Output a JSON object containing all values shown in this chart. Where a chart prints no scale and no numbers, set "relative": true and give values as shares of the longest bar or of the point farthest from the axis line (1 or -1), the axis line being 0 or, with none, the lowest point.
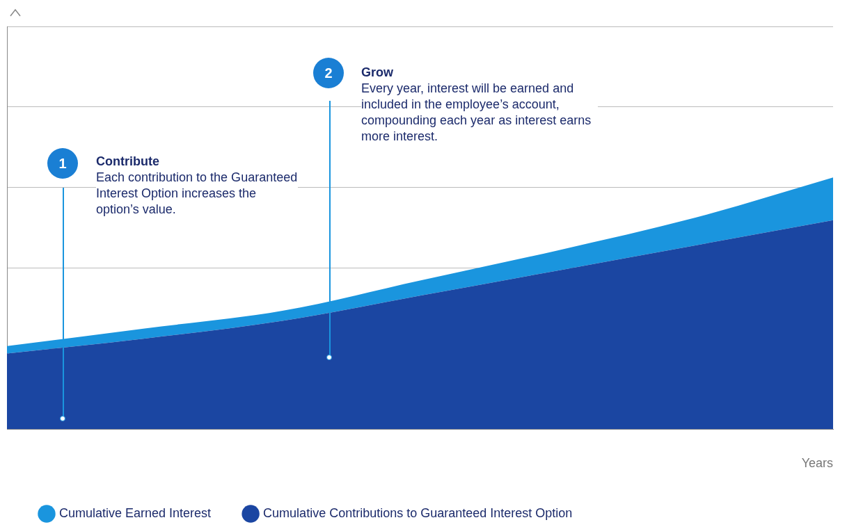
{
  "chart_data": {
    "type": "area",
    "stacked": true,
    "relative": true,
    "xlabel": "Years",
    "categories": [
      null,
      null,
      null,
      null,
      null,
      null,
      null
    ],
    "series": [
      {
        "name": "Cumulative Contributions to Guaranteed Interest Option",
        "color": "#1b46a2",
        "values": [
          0.3,
          0.36,
          0.43,
          0.53,
          0.63,
          0.73,
          0.83
        ]
      },
      {
        "name": "Cumulative Earned Interest",
        "color": "#1a95de",
        "values": [
          0.03,
          0.04,
          0.04,
          0.06,
          0.08,
          0.11,
          0.17
        ]
      }
    ],
    "annotations": [
      "1",
      "Contribute",
      "Each contribution to the Guaranteed Interest Option increases the option’s value.",
      "2",
      "Grow",
      "Every year, interest will be earned and included in the employee’s account, compounding each year as interest earns more interest."
    ],
    "grid": "y",
    "legend": "bottom left",
    "marker": "none"
  }
}
